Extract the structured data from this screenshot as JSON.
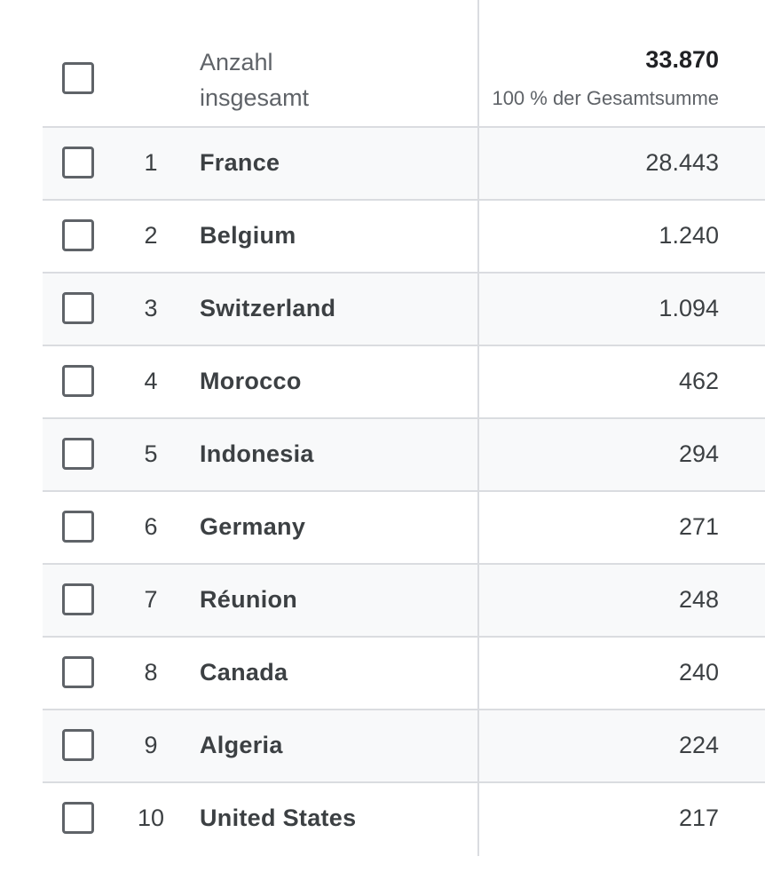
{
  "header": {
    "metric_label_line1": "Anzahl",
    "metric_label_line2": "insgesamt",
    "total_value": "33.870",
    "total_percent": "100 % der Gesamtsumme"
  },
  "rows": [
    {
      "rank": "1",
      "country": "France",
      "value": "28.443"
    },
    {
      "rank": "2",
      "country": "Belgium",
      "value": "1.240"
    },
    {
      "rank": "3",
      "country": "Switzerland",
      "value": "1.094"
    },
    {
      "rank": "4",
      "country": "Morocco",
      "value": "462"
    },
    {
      "rank": "5",
      "country": "Indonesia",
      "value": "294"
    },
    {
      "rank": "6",
      "country": "Germany",
      "value": "271"
    },
    {
      "rank": "7",
      "country": "Réunion",
      "value": "248"
    },
    {
      "rank": "8",
      "country": "Canada",
      "value": "240"
    },
    {
      "rank": "9",
      "country": "Algeria",
      "value": "224"
    },
    {
      "rank": "10",
      "country": "United States",
      "value": "217"
    }
  ]
}
